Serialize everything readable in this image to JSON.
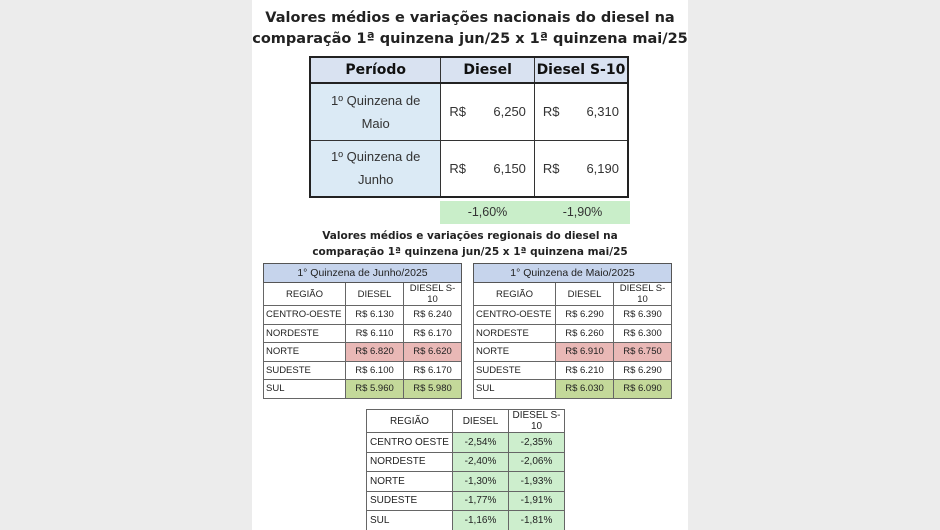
{
  "national": {
    "title_line1": "Valores médios e variações nacionais do diesel na",
    "title_line2": "comparação 1ª quinzena jun/25 x 1ª quinzena mai/25",
    "headers": [
      "Período",
      "Diesel",
      "Diesel S-10"
    ],
    "rows": [
      {
        "period_line1": "1º Quinzena de",
        "period_line2": "Maio",
        "currency1": "R$",
        "diesel": "6,250",
        "currency2": "R$",
        "s10": "6,310"
      },
      {
        "period_line1": "1º Quinzena de",
        "period_line2": "Junho",
        "currency1": "R$",
        "diesel": "6,150",
        "currency2": "R$",
        "s10": "6,190"
      }
    ],
    "variation": {
      "diesel": "-1,60%",
      "s10": "-1,90%"
    }
  },
  "regional": {
    "title_line1": "Valores médios e variações regionais do diesel na",
    "title_line2": "comparação 1ª quinzena jun/25 x 1ª quinzena mai/25",
    "col_headers": [
      "REGIÃO",
      "DIESEL",
      "DIESEL S-10"
    ],
    "june": {
      "title": "1° Quinzena de Junho/2025",
      "rows": [
        {
          "region": "CENTRO-OESTE",
          "diesel": "R$ 6.130",
          "s10": "R$ 6.240"
        },
        {
          "region": "NORDESTE",
          "diesel": "R$ 6.110",
          "s10": "R$ 6.170"
        },
        {
          "region": "NORTE",
          "diesel": "R$ 6.820",
          "s10": "R$ 6.620"
        },
        {
          "region": "SUDESTE",
          "diesel": "R$ 6.100",
          "s10": "R$ 6.170"
        },
        {
          "region": "SUL",
          "diesel": "R$ 5.960",
          "s10": "R$ 5.980"
        }
      ]
    },
    "may": {
      "title": "1° Quinzena de Maio/2025",
      "rows": [
        {
          "region": "CENTRO-OESTE",
          "diesel": "R$ 6.290",
          "s10": "R$ 6.390"
        },
        {
          "region": "NORDESTE",
          "diesel": "R$ 6.260",
          "s10": "R$ 6.300"
        },
        {
          "region": "NORTE",
          "diesel": "R$ 6.910",
          "s10": "R$ 6.750"
        },
        {
          "region": "SUDESTE",
          "diesel": "R$ 6.210",
          "s10": "R$ 6.290"
        },
        {
          "region": "SUL",
          "diesel": "R$ 6.030",
          "s10": "R$ 6.090"
        }
      ]
    },
    "variation": {
      "headers": [
        "REGIÃO",
        "DIESEL",
        "DIESEL S-10"
      ],
      "rows": [
        {
          "region": "CENTRO OESTE",
          "diesel": "-2,54%",
          "s10": "-2,35%"
        },
        {
          "region": "NORDESTE",
          "diesel": "-2,40%",
          "s10": "-2,06%"
        },
        {
          "region": "NORTE",
          "diesel": "-1,30%",
          "s10": "-1,93%"
        },
        {
          "region": "SUDESTE",
          "diesel": "-1,77%",
          "s10": "-1,91%"
        },
        {
          "region": "SUL",
          "diesel": "-1,16%",
          "s10": "-1,81%"
        }
      ]
    }
  },
  "colors": {
    "header_blue": "#d9e2f1",
    "period_blue": "#dbeaf5",
    "variation_green": "#c9eec9",
    "highest_red": "#e9b8b6",
    "lowest_green": "#c4d99a"
  }
}
